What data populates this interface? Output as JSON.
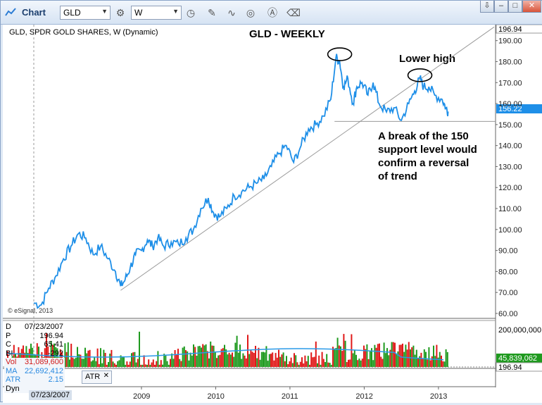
{
  "window": {
    "title": "Chart",
    "symbol": "GLD",
    "interval": "W",
    "tools": [
      "gear-icon",
      "clock-icon",
      "pencil-icon",
      "squiggle-icon",
      "target-icon",
      "a-circle-icon",
      "eraser-icon"
    ],
    "window_buttons": [
      "⇩",
      "–",
      "□",
      "✕"
    ]
  },
  "chart": {
    "header": "GLD, SPDR GOLD SHARES, W (Dynamic)",
    "title": "GLD - WEEKLY",
    "annotation_lower_high": "Lower high",
    "annotation_break_1": "A break of the 150",
    "annotation_break_2": "support level would",
    "annotation_break_3": "confirm a reversal",
    "annotation_break_4": "of trend",
    "copyright": "© eSignal, 2013",
    "price_top_label": "196.94",
    "last_price_label": "156.22",
    "volume_axis_label": "200,000,000",
    "volume_last_label": "45,839,062",
    "volume_bottom_label": "196.94",
    "atr_tab": "ATR",
    "atr_close": "✕",
    "bottom_date": "07/23/2007"
  },
  "info_panel": {
    "rows": [
      {
        "k": "D",
        "v": "07/23/2007"
      },
      {
        "k": "P",
        "v": "196.94"
      },
      {
        "k": "C",
        "v": "65.41"
      },
      {
        "k": "BI",
        "v": "-292"
      },
      {
        "k": "Vol",
        "v": "31,089,600"
      },
      {
        "k": "MA",
        "v": "22,692,412"
      },
      {
        "k": "ATR",
        "v": "2.15"
      },
      {
        "k": "Dyn",
        "v": ""
      }
    ]
  },
  "colors": {
    "price_line": "#1e8fe8",
    "trend_line": "#9a9a9a",
    "volume_up": "#1f9a1f",
    "volume_down": "#e01818",
    "volume_ma": "#2a9ae8",
    "last_price_badge": "#1e8fe8",
    "volume_badge": "#1f9a1f"
  },
  "chart_data": {
    "type": "line",
    "title": "GLD - WEEKLY",
    "ylim": [
      60,
      196.94
    ],
    "yticks": [
      60,
      70,
      80,
      90,
      100,
      110,
      120,
      130,
      140,
      150,
      160,
      170,
      180,
      190
    ],
    "xticks": [
      "2009",
      "2010",
      "2011",
      "2012",
      "2013"
    ],
    "series": [
      {
        "name": "GLD",
        "x": [
          2007.55,
          2007.65,
          2007.75,
          2007.85,
          2007.95,
          2008.05,
          2008.15,
          2008.25,
          2008.35,
          2008.45,
          2008.55,
          2008.65,
          2008.72,
          2008.78,
          2008.85,
          2008.92,
          2009.0,
          2009.08,
          2009.15,
          2009.22,
          2009.3,
          2009.4,
          2009.5,
          2009.6,
          2009.7,
          2009.8,
          2009.9,
          2009.97,
          2010.05,
          2010.15,
          2010.25,
          2010.35,
          2010.45,
          2010.55,
          2010.65,
          2010.75,
          2010.85,
          2010.95,
          2011.05,
          2011.15,
          2011.25,
          2011.35,
          2011.45,
          2011.55,
          2011.62,
          2011.67,
          2011.72,
          2011.78,
          2011.85,
          2011.9,
          2011.97,
          2012.05,
          2012.12,
          2012.2,
          2012.3,
          2012.4,
          2012.5,
          2012.6,
          2012.68,
          2012.75,
          2012.8,
          2012.87,
          2012.95,
          2013.05,
          2013.1,
          2013.13
        ],
        "values": [
          65,
          64,
          72,
          78,
          86,
          92,
          98,
          96,
          88,
          92,
          86,
          80,
          73,
          76,
          82,
          88,
          90,
          95,
          92,
          96,
          92,
          94,
          93,
          96,
          100,
          110,
          115,
          108,
          106,
          110,
          116,
          118,
          120,
          122,
          124,
          130,
          136,
          140,
          132,
          140,
          148,
          150,
          154,
          162,
          182,
          180,
          168,
          172,
          160,
          168,
          170,
          164,
          170,
          160,
          156,
          158,
          152,
          160,
          166,
          172,
          168,
          168,
          164,
          162,
          158,
          156.22
        ]
      },
      {
        "name": "Volume",
        "type": "bar",
        "ylim": [
          0,
          240000000
        ],
        "yticks": [
          200000000
        ],
        "last": 45839062
      }
    ],
    "annotations": [
      "Lower high",
      "A break of the 150 support level would confirm a reversal of trend"
    ],
    "legend": "none",
    "grid": false
  }
}
